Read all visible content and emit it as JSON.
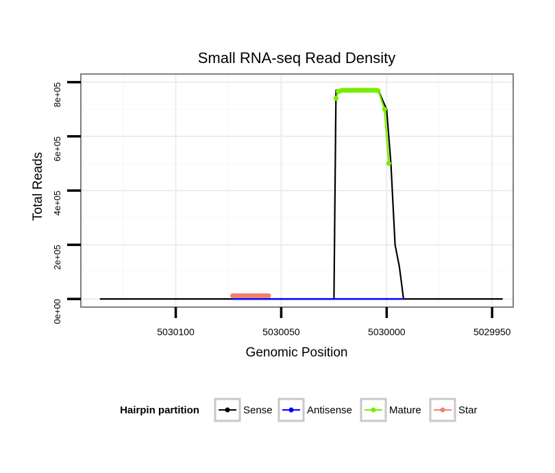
{
  "chart_data": {
    "type": "line",
    "title": "Small RNA-seq Read Density",
    "xlabel": "Genomic Position",
    "ylabel": "Total Reads",
    "xlim": [
      5030145,
      5029940
    ],
    "x_reversed": true,
    "ylim": [
      -30000,
      830000
    ],
    "x_ticks": [
      5030100,
      5030050,
      5030000,
      5029950
    ],
    "x_tick_labels": [
      "5030100",
      "5030050",
      "5030000",
      "5029950"
    ],
    "y_ticks": [
      0,
      200000,
      400000,
      600000,
      800000
    ],
    "y_tick_labels": [
      "0e+00",
      "2e+05",
      "4e+05",
      "6e+05",
      "8e+05"
    ],
    "grid": true,
    "legend_title": "Hairpin partition",
    "legend_position": "bottom",
    "series": [
      {
        "name": "Sense",
        "color": "#000000",
        "marker": false,
        "points": [
          [
            5030136,
            0
          ],
          [
            5030099,
            0
          ],
          [
            5030060,
            0
          ],
          [
            5030025,
            0
          ],
          [
            5030024,
            770000
          ],
          [
            5030004,
            770000
          ],
          [
            5030000,
            700000
          ],
          [
            5029998,
            500000
          ],
          [
            5029996,
            200000
          ],
          [
            5029994,
            120000
          ],
          [
            5029993,
            60000
          ],
          [
            5029992,
            0
          ],
          [
            5029960,
            0
          ],
          [
            5029945,
            0
          ]
        ]
      },
      {
        "name": "Antisense",
        "color": "#0000ff",
        "marker": false,
        "points": [
          [
            5030073,
            0
          ],
          [
            5030056,
            0
          ],
          [
            5030040,
            0
          ],
          [
            5030025,
            0
          ],
          [
            5030000,
            0
          ],
          [
            5029992,
            0
          ]
        ]
      },
      {
        "name": "Mature",
        "color": "#77ee00",
        "marker": true,
        "points": [
          [
            5030024,
            740000
          ],
          [
            5030023,
            765000
          ],
          [
            5030022,
            768000
          ],
          [
            5030021,
            770000
          ],
          [
            5030020,
            770000
          ],
          [
            5030019,
            770000
          ],
          [
            5030018,
            770000
          ],
          [
            5030017,
            770000
          ],
          [
            5030016,
            770000
          ],
          [
            5030015,
            770000
          ],
          [
            5030014,
            770000
          ],
          [
            5030013,
            770000
          ],
          [
            5030012,
            770000
          ],
          [
            5030011,
            770000
          ],
          [
            5030010,
            770000
          ],
          [
            5030009,
            770000
          ],
          [
            5030008,
            770000
          ],
          [
            5030007,
            770000
          ],
          [
            5030006,
            770000
          ],
          [
            5030005,
            770000
          ],
          [
            5030004,
            768000
          ],
          [
            5030001,
            700000
          ],
          [
            5029999,
            500000
          ]
        ]
      },
      {
        "name": "Star",
        "color": "#f08070",
        "marker": true,
        "points": [
          [
            5030073,
            12000
          ],
          [
            5030072,
            12000
          ],
          [
            5030071,
            12000
          ],
          [
            5030070,
            12000
          ],
          [
            5030069,
            12000
          ],
          [
            5030068,
            12000
          ],
          [
            5030067,
            12000
          ],
          [
            5030066,
            12000
          ],
          [
            5030065,
            12000
          ],
          [
            5030064,
            12000
          ],
          [
            5030063,
            12000
          ],
          [
            5030062,
            12000
          ],
          [
            5030061,
            12000
          ],
          [
            5030060,
            12000
          ],
          [
            5030059,
            12000
          ],
          [
            5030058,
            12000
          ],
          [
            5030057,
            12000
          ],
          [
            5030056,
            12000
          ]
        ]
      }
    ]
  }
}
